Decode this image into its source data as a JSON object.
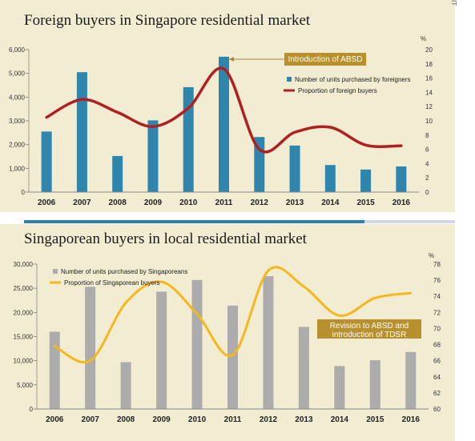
{
  "edge_text": "IT",
  "chart_data": [
    {
      "type": "bar",
      "title": "Foreign buyers in Singapore residential market",
      "categories": [
        "2006",
        "2007",
        "2008",
        "2009",
        "2010",
        "2011",
        "2012",
        "2013",
        "2014",
        "2015",
        "2016"
      ],
      "series": [
        {
          "name": "Number of units purchased by foreigners",
          "type": "bar",
          "axis": "left",
          "values": [
            2550,
            5050,
            1520,
            3020,
            4420,
            5700,
            2320,
            1960,
            1140,
            950,
            1080
          ]
        },
        {
          "name": "Proportion of foreign buyers",
          "type": "line",
          "axis": "right",
          "values": [
            10.5,
            13.0,
            11.2,
            9.2,
            11.8,
            17.3,
            6.0,
            8.4,
            9.1,
            6.6,
            6.5
          ]
        }
      ],
      "ylim": [
        0,
        6000
      ],
      "yticks": [
        "0",
        "1,000",
        "2,000",
        "3,000",
        "4,000",
        "5,000",
        "6,000"
      ],
      "y2lim": [
        0,
        20
      ],
      "y2ticks": [
        "0",
        "2",
        "4",
        "6",
        "8",
        "10",
        "12",
        "14",
        "16",
        "18",
        "20"
      ],
      "y2unit": "%",
      "annotation": "Introduction of ABSD",
      "colors": {
        "bar": "#2f86ad",
        "line": "#b02020",
        "annotation_bg": "#b8902e"
      },
      "legend_position": "right"
    },
    {
      "type": "bar",
      "title": "Singaporean buyers in local residential market",
      "categories": [
        "2006",
        "2007",
        "2008",
        "2009",
        "2010",
        "2011",
        "2012",
        "2013",
        "2014",
        "2015",
        "2016"
      ],
      "series": [
        {
          "name": "Number of units purchased by Singaporeans",
          "type": "bar",
          "axis": "left",
          "values": [
            16000,
            25300,
            9700,
            24300,
            26700,
            21400,
            27500,
            17000,
            8900,
            10100,
            11800
          ]
        },
        {
          "name": "Proportion of Singaporean buyers",
          "type": "line",
          "axis": "right",
          "values": [
            67.8,
            66.0,
            73.2,
            75.8,
            71.8,
            66.7,
            77.2,
            75.2,
            71.6,
            73.8,
            74.4
          ]
        }
      ],
      "ylim": [
        0,
        30000
      ],
      "yticks": [
        "0",
        "5,000",
        "10,000",
        "15,000",
        "20,000",
        "25,000",
        "30,000"
      ],
      "y2lim": [
        60,
        78
      ],
      "y2ticks": [
        "60",
        "62",
        "64",
        "66",
        "68",
        "70",
        "72",
        "74",
        "76",
        "78"
      ],
      "y2unit": "%",
      "annotation": [
        "Revision to ABSD and",
        "introduction of TDSR"
      ],
      "colors": {
        "bar": "#acacac",
        "line": "#f5b81c",
        "annotation_bg": "#b8902e"
      },
      "legend_position": "top-left"
    }
  ]
}
